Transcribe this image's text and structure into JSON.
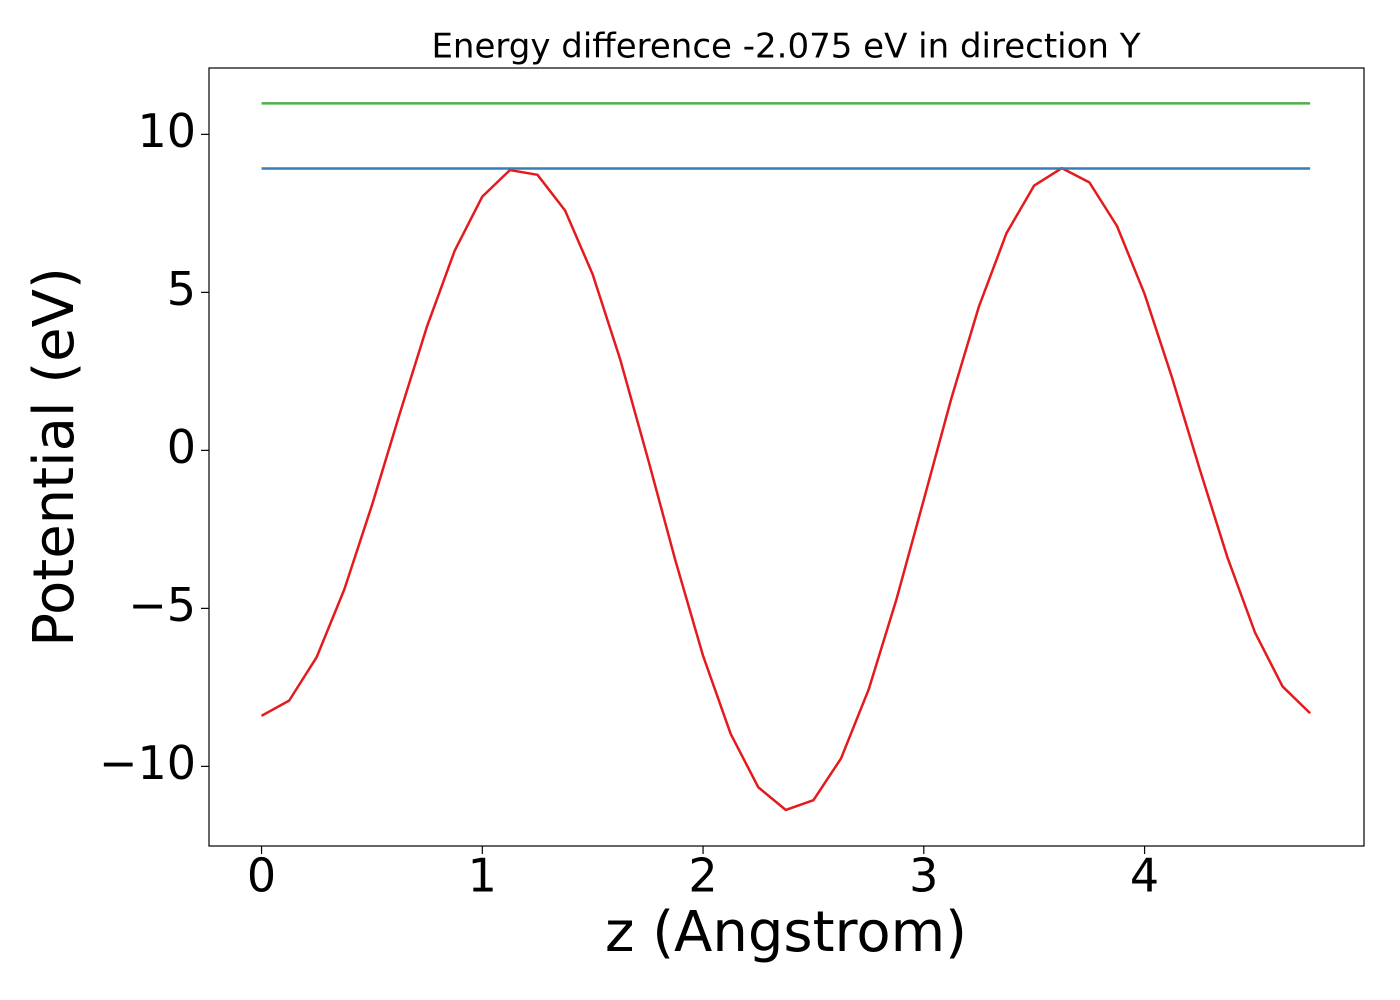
{
  "chart_data": {
    "type": "line",
    "title": "Energy difference -2.075 eV in direction Y",
    "xlabel": "z (Angstrom)",
    "ylabel": "Potential (eV)",
    "xlim": [
      -0.238,
      4.994
    ],
    "ylim": [
      -12.52,
      12.1
    ],
    "xticks": [
      0,
      1,
      2,
      3,
      4
    ],
    "yticks": [
      {
        "value": -10,
        "label": "−10"
      },
      {
        "value": -5,
        "label": "−5"
      },
      0,
      5,
      10
    ],
    "grid": false,
    "series": [
      {
        "color": "#e41a1c",
        "x": [
          0,
          0.125,
          0.25,
          0.375,
          0.5,
          0.625,
          0.75,
          0.875,
          1,
          1.125,
          1.25,
          1.375,
          1.5,
          1.625,
          1.75,
          1.875,
          2,
          2.125,
          2.25,
          2.375,
          2.5,
          2.625,
          2.75,
          2.875,
          3,
          3.125,
          3.25,
          3.375,
          3.5,
          3.625,
          3.75,
          3.875,
          4,
          4.125,
          4.25,
          4.375,
          4.5,
          4.625,
          4.75
        ],
        "values": [
          -8.4,
          -7.92,
          -6.54,
          -4.4,
          -1.74,
          1.14,
          3.93,
          6.32,
          8.03,
          8.87,
          8.72,
          7.59,
          5.57,
          2.87,
          -0.26,
          -3.49,
          -6.5,
          -8.97,
          -10.66,
          -11.38,
          -11.07,
          -9.75,
          -7.57,
          -4.74,
          -1.56,
          1.65,
          4.56,
          6.88,
          8.38,
          8.93,
          8.48,
          7.1,
          4.95,
          2.29,
          -0.6,
          -3.38,
          -5.76,
          -7.47,
          -8.32
        ]
      },
      {
        "color": "#377eb8",
        "x": [
          0,
          4.75
        ],
        "values": [
          8.92,
          8.92
        ]
      },
      {
        "color": "#4daf4a",
        "x": [
          0,
          4.75
        ],
        "values": [
          10.98,
          10.98
        ]
      }
    ]
  }
}
